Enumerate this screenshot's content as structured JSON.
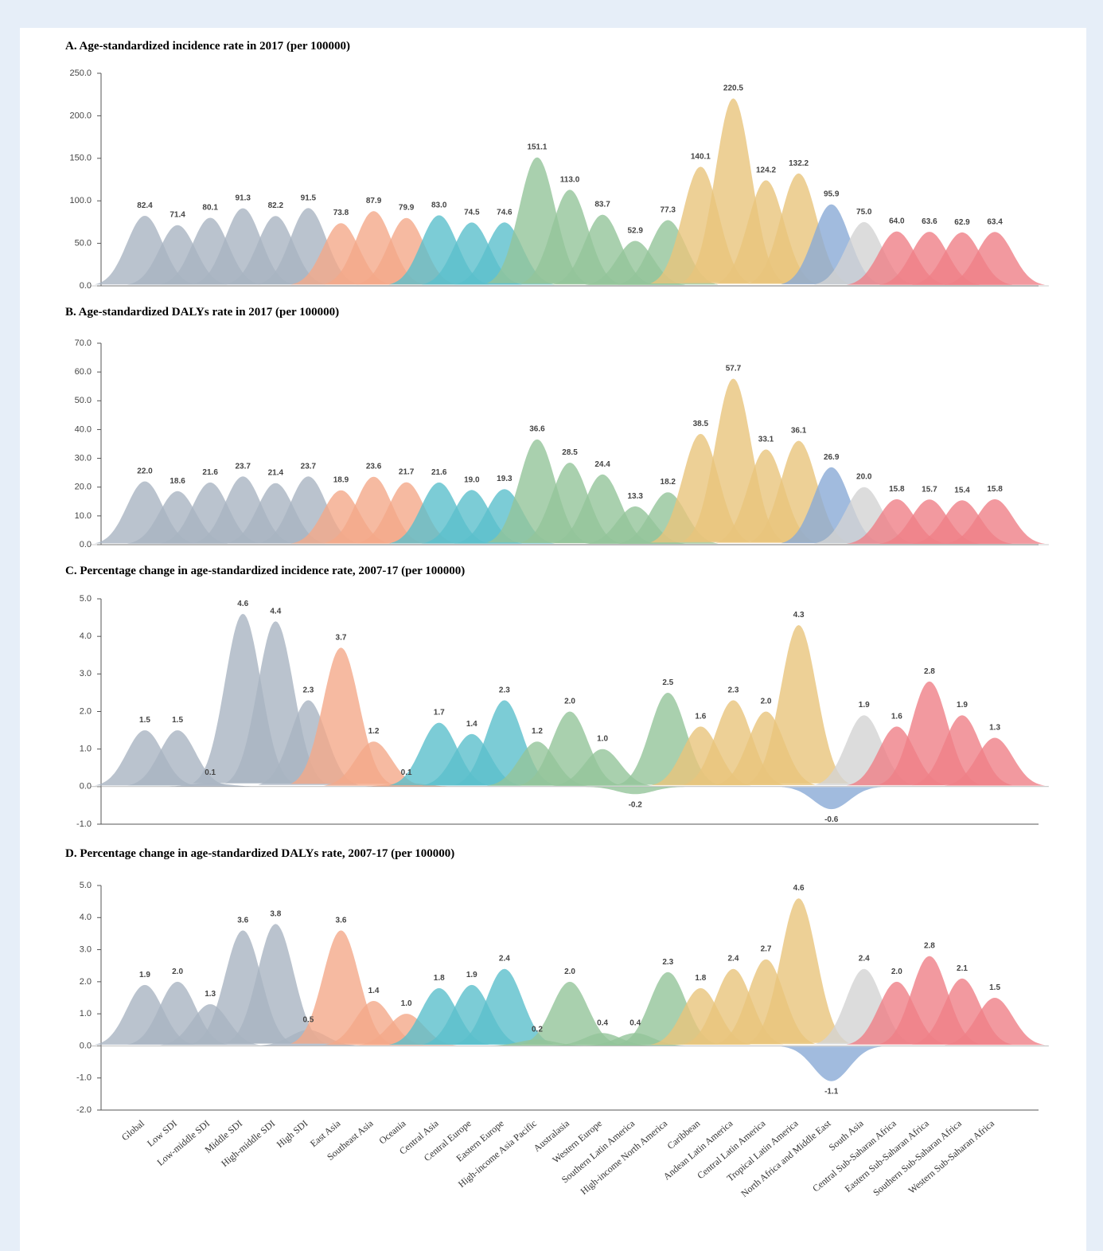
{
  "chart_data": [
    {
      "type": "area",
      "title": "A. Age-standardized incidence rate in 2017 (per 100000)",
      "values": [
        82.4,
        71.4,
        80.1,
        91.3,
        82.2,
        91.5,
        73.8,
        87.9,
        79.9,
        83.0,
        74.5,
        74.6,
        151.1,
        113.0,
        83.7,
        52.9,
        77.3,
        140.1,
        220.5,
        124.2,
        132.2,
        95.9,
        75.0,
        64.0,
        63.6,
        62.9,
        63.4
      ],
      "value_labels": [
        "82.4",
        "71.4",
        "80.1",
        "91.3",
        "82.2",
        "91.5",
        "73.8",
        "87.9",
        "79.9",
        "83.0",
        "74.5",
        "74.6",
        "151.1",
        "113.0",
        "83.7",
        "52.9",
        "77.3",
        "140.1",
        "220.5",
        "124.2",
        "132.2",
        "95.9",
        "75.0",
        "64.0",
        "63.6",
        "62.9",
        "63.4"
      ],
      "colors": [
        "#a9b4c2",
        "#a9b4c2",
        "#a9b4c2",
        "#a9b4c2",
        "#a9b4c2",
        "#a9b4c2",
        "#f4a98a",
        "#f4a98a",
        "#f4a98a",
        "#5bbfcc",
        "#5bbfcc",
        "#5bbfcc",
        "#93c49a",
        "#93c49a",
        "#93c49a",
        "#93c49a",
        "#93c49a",
        "#e9c47c",
        "#e9c47c",
        "#e9c47c",
        "#e9c47c",
        "#8aaad6",
        "#d3d3d3",
        "#ef7f87",
        "#ef7f87",
        "#ef7f87",
        "#ef7f87"
      ],
      "ylim": [
        0,
        250
      ],
      "yticks": [
        {
          "value": 0,
          "label": "0.0"
        },
        {
          "value": 50,
          "label": "50.0"
        },
        {
          "value": 100,
          "label": "100.0"
        },
        {
          "value": 150,
          "label": "150.0"
        },
        {
          "value": 200,
          "label": "200.0"
        },
        {
          "value": 250,
          "label": "250.0"
        }
      ]
    },
    {
      "type": "area",
      "title": "B. Age-standardized DALYs rate in 2017 (per 100000)",
      "values": [
        22.0,
        18.6,
        21.6,
        23.7,
        21.4,
        23.7,
        18.9,
        23.6,
        21.7,
        21.6,
        19.0,
        19.3,
        36.6,
        28.5,
        24.4,
        13.3,
        18.2,
        38.5,
        57.7,
        33.1,
        36.1,
        26.9,
        20.0,
        15.8,
        15.7,
        15.4,
        15.8
      ],
      "value_labels": [
        "22.0",
        "18.6",
        "21.6",
        "23.7",
        "21.4",
        "23.7",
        "18.9",
        "23.6",
        "21.7",
        "21.6",
        "19.0",
        "19.3",
        "36.6",
        "28.5",
        "24.4",
        "13.3",
        "18.2",
        "38.5",
        "57.7",
        "33.1",
        "36.1",
        "26.9",
        "20.0",
        "15.8",
        "15.7",
        "15.4",
        "15.8"
      ],
      "colors": [
        "#a9b4c2",
        "#a9b4c2",
        "#a9b4c2",
        "#a9b4c2",
        "#a9b4c2",
        "#a9b4c2",
        "#f4a98a",
        "#f4a98a",
        "#f4a98a",
        "#5bbfcc",
        "#5bbfcc",
        "#5bbfcc",
        "#93c49a",
        "#93c49a",
        "#93c49a",
        "#93c49a",
        "#93c49a",
        "#e9c47c",
        "#e9c47c",
        "#e9c47c",
        "#e9c47c",
        "#8aaad6",
        "#d3d3d3",
        "#ef7f87",
        "#ef7f87",
        "#ef7f87",
        "#ef7f87"
      ],
      "ylim": [
        0,
        70
      ],
      "yticks": [
        {
          "value": 0,
          "label": "0.0"
        },
        {
          "value": 10,
          "label": "10.0"
        },
        {
          "value": 20,
          "label": "20.0"
        },
        {
          "value": 30,
          "label": "30.0"
        },
        {
          "value": 40,
          "label": "40.0"
        },
        {
          "value": 50,
          "label": "50.0"
        },
        {
          "value": 60,
          "label": "60.0"
        },
        {
          "value": 70,
          "label": "70.0"
        }
      ]
    },
    {
      "type": "area",
      "title": "C. Percentage change in age-standardized incidence rate, 2007-17 (per 100000)",
      "values": [
        1.5,
        1.5,
        0.1,
        4.6,
        4.4,
        2.3,
        3.7,
        1.2,
        0.1,
        1.7,
        1.4,
        2.3,
        1.2,
        2.0,
        1.0,
        -0.2,
        2.5,
        1.6,
        2.3,
        2.0,
        4.3,
        -0.6,
        1.9,
        1.6,
        2.8,
        1.9,
        1.3
      ],
      "value_labels": [
        "1.5",
        "1.5",
        "0.1",
        "4.6",
        "4.4",
        "2.3",
        "3.7",
        "1.2",
        "0.1",
        "1.7",
        "1.4",
        "2.3",
        "1.2",
        "2.0",
        "1.0",
        "-0.2",
        "2.5",
        "1.6",
        "2.3",
        "2.0",
        "4.3",
        "-0.6",
        "1.9",
        "1.6",
        "2.8",
        "1.9",
        "1.3"
      ],
      "colors": [
        "#a9b4c2",
        "#a9b4c2",
        "#a9b4c2",
        "#a9b4c2",
        "#a9b4c2",
        "#a9b4c2",
        "#f4a98a",
        "#f4a98a",
        "#f4a98a",
        "#5bbfcc",
        "#5bbfcc",
        "#5bbfcc",
        "#93c49a",
        "#93c49a",
        "#93c49a",
        "#93c49a",
        "#93c49a",
        "#e9c47c",
        "#e9c47c",
        "#e9c47c",
        "#e9c47c",
        "#8aaad6",
        "#d3d3d3",
        "#ef7f87",
        "#ef7f87",
        "#ef7f87",
        "#ef7f87"
      ],
      "ylim": [
        -1,
        5
      ],
      "yticks": [
        {
          "value": -1,
          "label": "-1.0"
        },
        {
          "value": 0,
          "label": "0.0"
        },
        {
          "value": 1,
          "label": "1.0"
        },
        {
          "value": 2,
          "label": "2.0"
        },
        {
          "value": 3,
          "label": "3.0"
        },
        {
          "value": 4,
          "label": "4.0"
        },
        {
          "value": 5,
          "label": "5.0"
        }
      ]
    },
    {
      "type": "area",
      "title": "D. Percentage change in age-standardized DALYs rate, 2007-17 (per 100000)",
      "categories": [
        "Global",
        "Low SDI",
        "Low-middle SDI",
        "Middle SDI",
        "High-middle SDI",
        "High SDI",
        "East Asia",
        "Southeast Asia",
        "Oceania",
        "Central Asia",
        "Central Europe",
        "Eastern Europe",
        "High-income Asia Pacific",
        "Australasia",
        "Western Europe",
        "Southern Latin America",
        "High-income North America",
        "Caribbean",
        "Andean Latin America",
        "Central Latin America",
        "Tropical Latin America",
        "North Africa and Middle East",
        "South Asia",
        "Central Sub-Saharan Africa",
        "Eastern Sub-Saharan Africa",
        "Southern Sub-Saharan Africa",
        "Western Sub-Saharan Africa"
      ],
      "values": [
        1.9,
        2.0,
        1.3,
        3.6,
        3.8,
        0.5,
        3.6,
        1.4,
        1.0,
        1.8,
        1.9,
        2.4,
        0.2,
        2.0,
        0.4,
        0.4,
        2.3,
        1.8,
        2.4,
        2.7,
        4.6,
        -1.1,
        2.4,
        2.0,
        2.8,
        2.1,
        1.5
      ],
      "value_labels": [
        "1.9",
        "2.0",
        "1.3",
        "3.6",
        "3.8",
        "0.5",
        "3.6",
        "1.4",
        "1.0",
        "1.8",
        "1.9",
        "2.4",
        "0.2",
        "2.0",
        "0.4",
        "0.4",
        "2.3",
        "1.8",
        "2.4",
        "2.7",
        "4.6",
        "-1.1",
        "2.4",
        "2.0",
        "2.8",
        "2.1",
        "1.5"
      ],
      "colors": [
        "#a9b4c2",
        "#a9b4c2",
        "#a9b4c2",
        "#a9b4c2",
        "#a9b4c2",
        "#a9b4c2",
        "#f4a98a",
        "#f4a98a",
        "#f4a98a",
        "#5bbfcc",
        "#5bbfcc",
        "#5bbfcc",
        "#93c49a",
        "#93c49a",
        "#93c49a",
        "#93c49a",
        "#93c49a",
        "#e9c47c",
        "#e9c47c",
        "#e9c47c",
        "#e9c47c",
        "#8aaad6",
        "#d3d3d3",
        "#ef7f87",
        "#ef7f87",
        "#ef7f87",
        "#ef7f87"
      ],
      "ylim": [
        -2,
        5
      ],
      "yticks": [
        {
          "value": -2,
          "label": "-2.0"
        },
        {
          "value": -1,
          "label": "-1.0"
        },
        {
          "value": 0,
          "label": "0.0"
        },
        {
          "value": 1,
          "label": "1.0"
        },
        {
          "value": 2,
          "label": "2.0"
        },
        {
          "value": 3,
          "label": "3.0"
        },
        {
          "value": 4,
          "label": "4.0"
        },
        {
          "value": 5,
          "label": "5.0"
        }
      ]
    }
  ]
}
